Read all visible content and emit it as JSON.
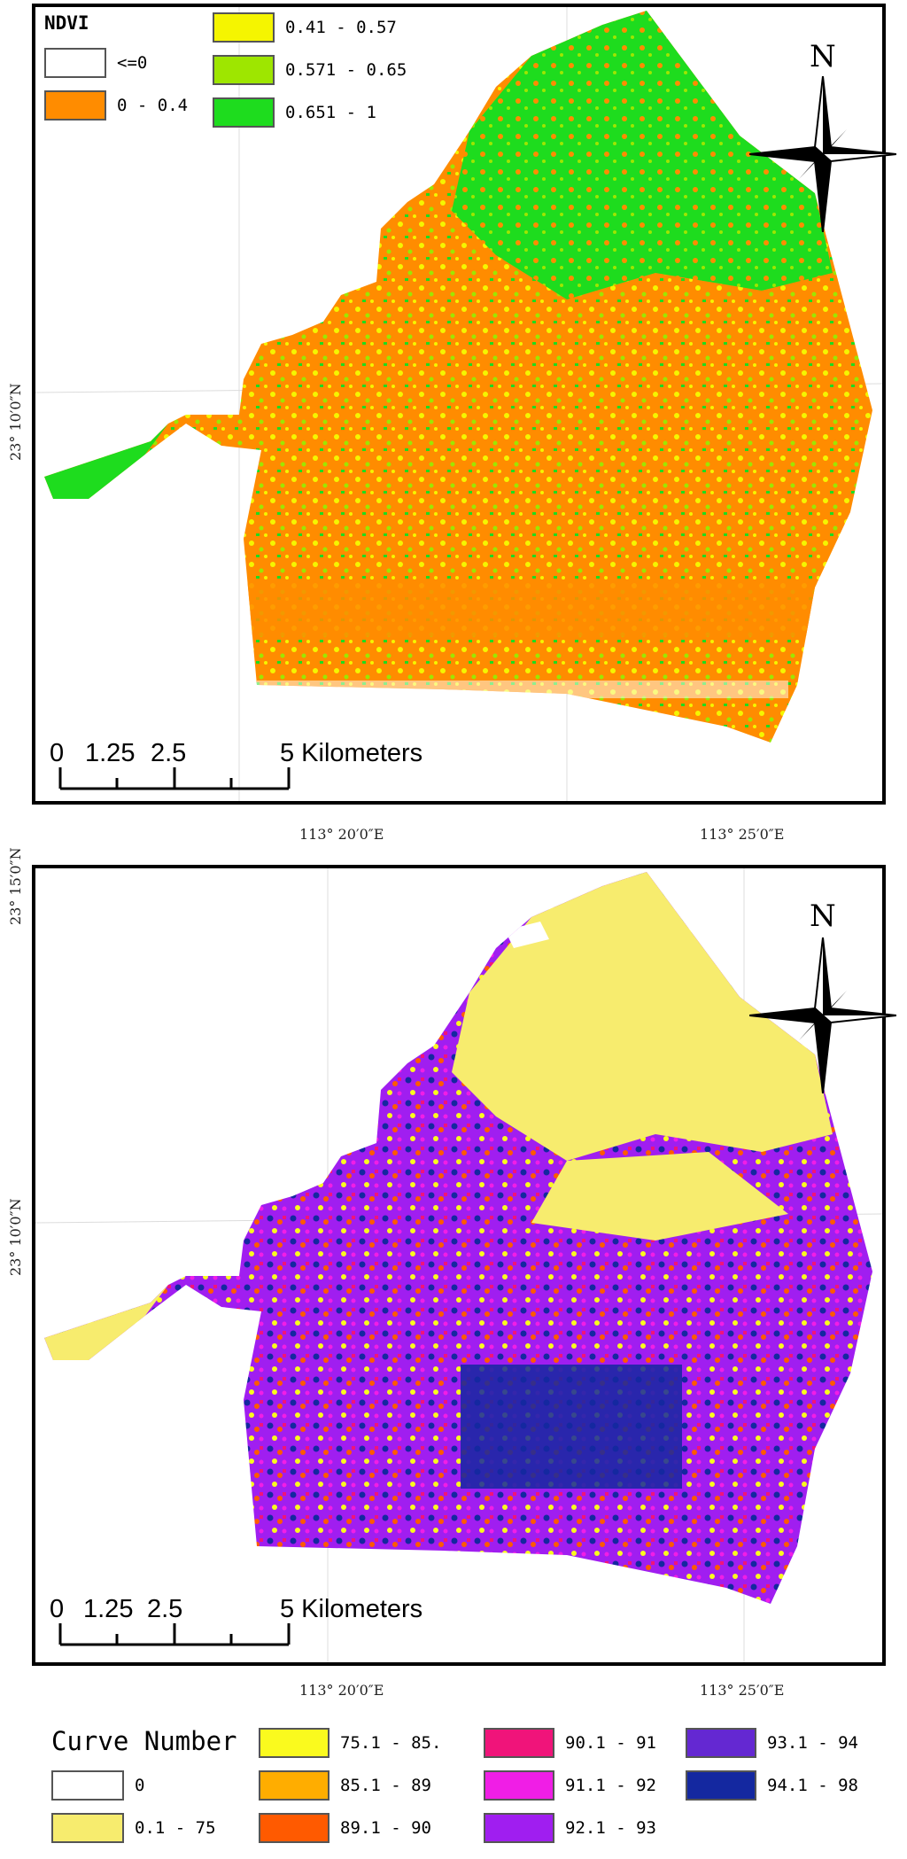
{
  "top_map": {
    "legend": {
      "title": "NDVI",
      "items": [
        {
          "label": "<=0",
          "color": "#ffffff"
        },
        {
          "label": "0 - 0.4",
          "color": "#ff8c00"
        },
        {
          "label": "0.41 - 0.57",
          "color": "#f5f500"
        },
        {
          "label": "0.571 - 0.65",
          "color": "#9ee600"
        },
        {
          "label": "0.651 - 1",
          "color": "#1edc1e"
        }
      ]
    },
    "north_label": "N",
    "scale": {
      "ticks": [
        "0",
        "1.25",
        "2.5",
        "5 Kilometers"
      ]
    },
    "lat_labels": [
      "23° 10′0″N"
    ],
    "lon_labels": [
      "113° 20′0″E",
      "113° 25′0″E"
    ]
  },
  "bottom_map": {
    "north_label": "N",
    "scale": {
      "ticks": [
        "0",
        "1.25",
        "2.5",
        "5 Kilometers"
      ]
    },
    "lat_labels": [
      "23° 15′0″N",
      "23° 10′0″N"
    ],
    "lon_labels": [
      "113° 20′0″E",
      "113° 25′0″E"
    ],
    "legend": {
      "title": "Curve Number",
      "items": [
        {
          "label": "0",
          "color": "#ffffff"
        },
        {
          "label": "0.1 - 75",
          "color": "#f7ec6e"
        },
        {
          "label": "75.1 - 85.",
          "color": "#fafa1e"
        },
        {
          "label": "85.1 - 89",
          "color": "#ffad00"
        },
        {
          "label": "89.1 - 90",
          "color": "#ff5a00"
        },
        {
          "label": "90.1 - 91",
          "color": "#f0147a"
        },
        {
          "label": "91.1 - 92",
          "color": "#f01ee6"
        },
        {
          "label": "92.1 - 93",
          "color": "#a01ef0"
        },
        {
          "label": "93.1 - 94",
          "color": "#6428d2"
        },
        {
          "label": "94.1 - 98",
          "color": "#1428a0"
        }
      ]
    }
  }
}
